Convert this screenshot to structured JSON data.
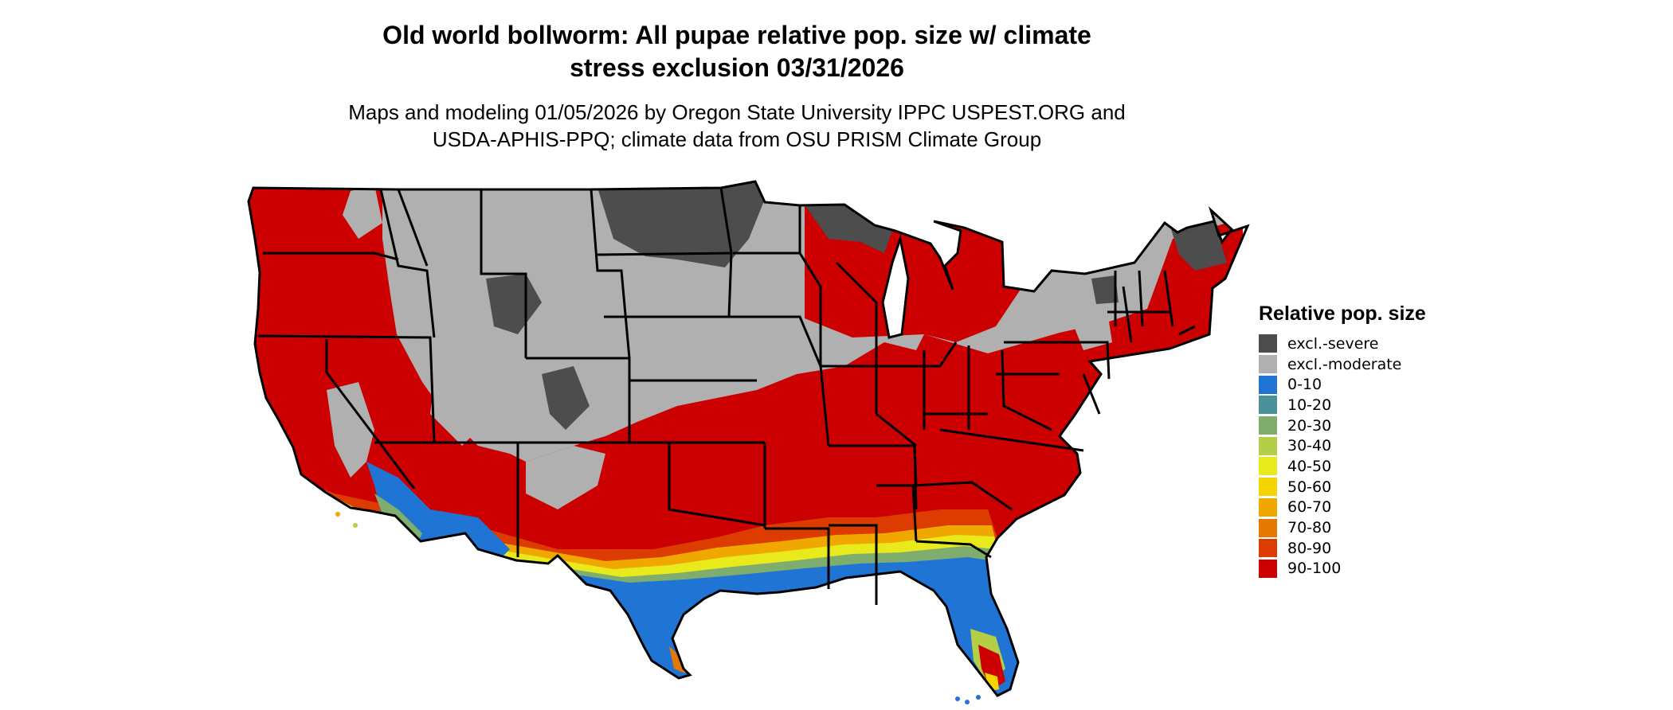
{
  "title": {
    "line1": "Old world bollworm: All pupae relative pop. size w/ climate",
    "line2": "stress exclusion 03/31/2026"
  },
  "subtitle": {
    "line1": "Maps and modeling 01/05/2026 by Oregon State University IPPC USPEST.ORG and",
    "line2": "USDA-APHIS-PPQ; climate data from OSU PRISM Climate Group"
  },
  "legend": {
    "title": "Relative pop. size",
    "items": [
      {
        "label": "excl.-severe",
        "color": "#4d4d4d"
      },
      {
        "label": "excl.-moderate",
        "color": "#b0b0b0"
      },
      {
        "label": "0-10",
        "color": "#1f74d4"
      },
      {
        "label": "10-20",
        "color": "#4a9199"
      },
      {
        "label": "20-30",
        "color": "#7fad6e"
      },
      {
        "label": "30-40",
        "color": "#b4cf45"
      },
      {
        "label": "40-50",
        "color": "#e8ea1c"
      },
      {
        "label": "50-60",
        "color": "#f6d400"
      },
      {
        "label": "60-70",
        "color": "#f0a800"
      },
      {
        "label": "70-80",
        "color": "#e57800"
      },
      {
        "label": "80-90",
        "color": "#dc3c00"
      },
      {
        "label": "90-100",
        "color": "#cc0000"
      }
    ]
  }
}
